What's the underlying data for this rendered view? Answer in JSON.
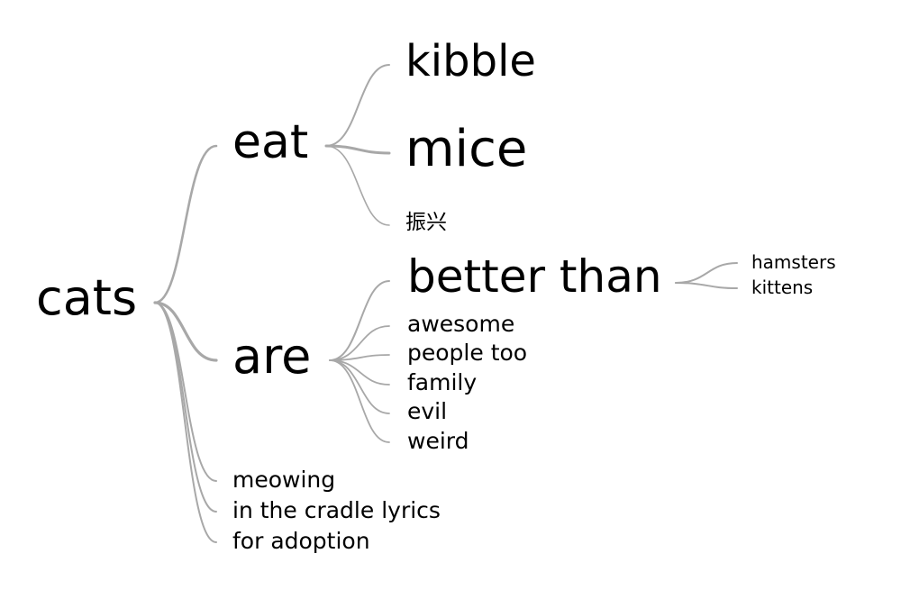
{
  "tree": {
    "root": "cats",
    "branches": {
      "eat": {
        "label": "eat",
        "children": [
          "kibble",
          "mice",
          "振兴"
        ]
      },
      "are": {
        "label": "are",
        "children": [
          "better than",
          "awesome",
          "people too",
          "family",
          "evil",
          "weird"
        ],
        "better_than": [
          "hamsters",
          "kittens"
        ]
      },
      "leaves": [
        "meowing",
        "in the cradle lyrics",
        "for adoption"
      ]
    }
  },
  "colors": {
    "edge": "#a8a8a8",
    "text": "#000000",
    "background": "#ffffff"
  }
}
